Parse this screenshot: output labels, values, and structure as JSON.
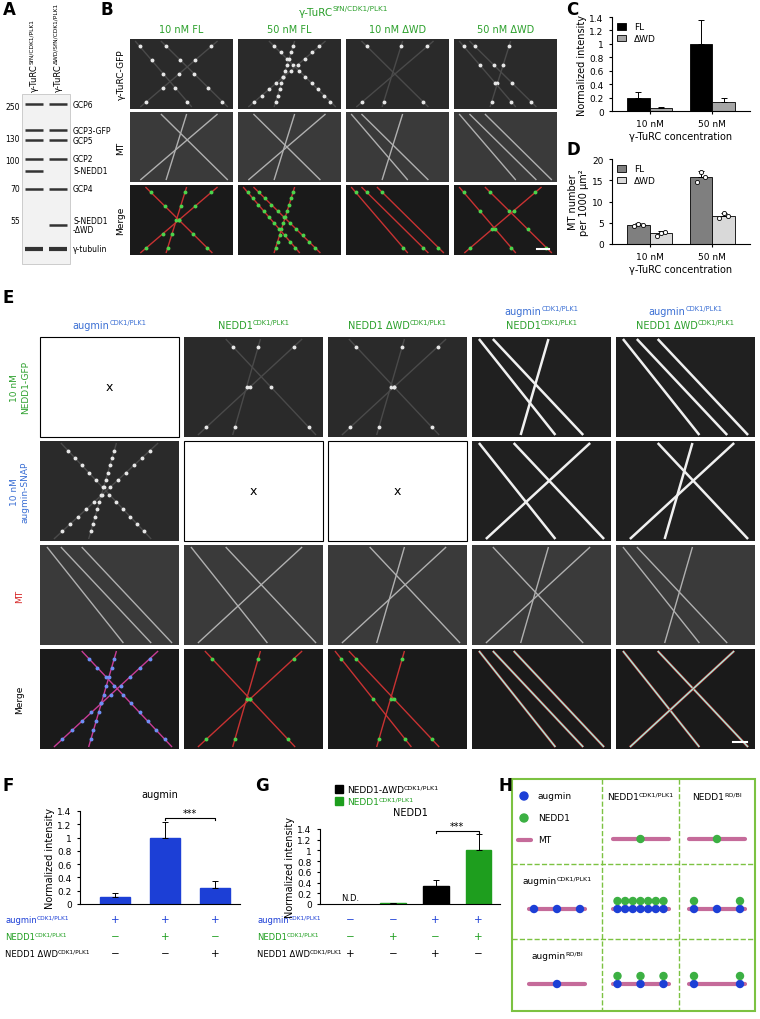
{
  "panel_labels": [
    "A",
    "B",
    "C",
    "D",
    "E",
    "F",
    "G",
    "H"
  ],
  "gel": {
    "lanes": [
      {
        "text": "γ-TuRC",
        "sup": "SfN/CDK1/PLK1"
      },
      {
        "text": "γ-TuRC",
        "sup": "ΔWD/SfN/CDK1/PLK1"
      }
    ],
    "mw_markers": [
      250,
      130,
      100,
      70,
      55
    ],
    "bands": [
      "GCP6",
      "GCP3-GFP",
      "GCP5",
      "GCP2",
      "S-NEDD1",
      "GCP4",
      "S-NEDD1\n-ΔWD",
      "γ-tubulin"
    ]
  },
  "micrographs_B": {
    "title": {
      "text": "γ-TuRC",
      "sup": "SfN/CDK1/PLK1",
      "color": "#2ca02c"
    },
    "columns": [
      "10 nM FL",
      "50 nM FL",
      "10 nM ΔWD",
      "50 nM ΔWD"
    ],
    "rows": [
      "γ-TuRC-GFP",
      "MT",
      "Merge"
    ]
  },
  "chart_data": [
    {
      "type": "bar",
      "ylabel": "Normalized intensity",
      "xlabel": "γ-TuRC concentration",
      "categories": [
        "10 nM",
        "50 nM"
      ],
      "series": [
        {
          "name": "FL",
          "color": "#000000",
          "values": [
            0.2,
            1.0
          ],
          "errors": [
            0.08,
            0.35
          ]
        },
        {
          "name": "ΔWD",
          "color": "#a6a6a6",
          "values": [
            0.04,
            0.13
          ],
          "errors": [
            0.02,
            0.07
          ]
        }
      ],
      "ylim": [
        0,
        1.4
      ],
      "yticks": [
        0,
        0.2,
        0.4,
        0.6,
        0.8,
        1,
        1.2,
        1.4
      ],
      "legend": "upper left",
      "grid": false
    },
    {
      "type": "bar",
      "ylabel": "MT number\nper 1000 μm²",
      "xlabel": "γ-TuRC concentration",
      "categories": [
        "10 nM",
        "50 nM"
      ],
      "series": [
        {
          "name": "FL",
          "color": "#7f7f7f",
          "values": [
            4.5,
            15.8
          ],
          "errors": [
            0.5,
            1.4
          ],
          "points": [
            [
              4.3,
              4.8,
              4.5
            ],
            [
              14.6,
              17.0,
              15.8
            ]
          ]
        },
        {
          "name": "ΔWD",
          "color": "#d9d9d9",
          "values": [
            2.5,
            6.7
          ],
          "errors": [
            0.6,
            0.6
          ],
          "points": [
            [
              2.0,
              2.6,
              2.9
            ],
            [
              6.2,
              7.3,
              6.6
            ]
          ]
        }
      ],
      "ylim": [
        0,
        20
      ],
      "yticks": [
        0,
        5,
        10,
        15,
        20
      ],
      "legend": "upper left",
      "grid": false
    },
    {
      "type": "bar",
      "title": "augmin",
      "ylabel": "Normalized intensity",
      "categories": [
        null,
        null,
        null
      ],
      "values": [
        0.1,
        1.0,
        0.24
      ],
      "errors": [
        0.07,
        0.24,
        0.1
      ],
      "color": "#1c3fd6",
      "ylim": [
        0,
        1.4
      ],
      "yticks": [
        0,
        0.2,
        0.4,
        0.6,
        0.8,
        1,
        1.2,
        1.4
      ],
      "significance": [
        {
          "between": [
            1,
            2
          ],
          "label": "***"
        }
      ],
      "conditions": [
        {
          "text": "augmin",
          "sup": "CDK1/PLK1",
          "color": "#1c3fd6",
          "marks": [
            "+",
            "+",
            "+"
          ]
        },
        {
          "text": "NEDD1",
          "sup": "CDK1/PLK1",
          "color": "#1e9e1e",
          "marks": [
            "−",
            "+",
            "−"
          ]
        },
        {
          "text": "NEDD1 ΔWD",
          "sup": "CDK1/PLK1",
          "color": "#000000",
          "marks": [
            "−",
            "−",
            "+"
          ]
        }
      ],
      "tick_labels": "y",
      "grid": false
    },
    {
      "type": "bar",
      "title": "NEDD1",
      "ylabel": "Normalized intensity",
      "categories": [
        null,
        null,
        null,
        null
      ],
      "values": [
        null,
        0.01,
        0.33,
        1.0
      ],
      "errors": [
        null,
        0.005,
        0.12,
        0.3
      ],
      "value_labels": [
        "N.D.",
        null,
        null,
        null
      ],
      "colors": [
        "#000000",
        "#1e9e1e",
        "#000000",
        "#1e9e1e"
      ],
      "ylim": [
        0,
        1.4
      ],
      "yticks": [
        0,
        0.2,
        0.4,
        0.6,
        0.8,
        1,
        1.2,
        1.4
      ],
      "significance": [
        {
          "between": [
            2,
            3
          ],
          "label": "***"
        }
      ],
      "key": [
        {
          "text": "NEDD1-ΔWD",
          "sup": "CDK1/PLK1",
          "color": "#000000"
        },
        {
          "text": "NEDD1",
          "sup": "CDK1/PLK1",
          "color": "#1e9e1e"
        }
      ],
      "conditions": [
        {
          "text": "augmin",
          "sup": "CDK1/PLK1",
          "color": "#1c3fd6",
          "marks": [
            "−",
            "−",
            "+",
            "+"
          ]
        },
        {
          "text": "NEDD1",
          "sup": "CDK1/PLK1",
          "color": "#1e9e1e",
          "marks": [
            "−",
            "+",
            "−",
            "+"
          ]
        },
        {
          "text": "NEDD1 ΔWD",
          "sup": "CDK1/PLK1",
          "color": "#000000",
          "marks": [
            "+",
            "−",
            "+",
            "−"
          ]
        }
      ],
      "tick_labels": "y",
      "grid": false
    }
  ],
  "micrographs_E": {
    "columns": [
      [
        {
          "text": "augmin",
          "sup": "CDK1/PLK1",
          "color": "#3b6fd4"
        }
      ],
      [
        {
          "text": "NEDD1",
          "sup": "CDK1/PLK1",
          "color": "#2ca02c"
        }
      ],
      [
        {
          "text": "NEDD1 ΔWD",
          "sup": "CDK1/PLK1",
          "color": "#2ca02c"
        }
      ],
      [
        {
          "text": "augmin",
          "sup": "CDK1/PLK1",
          "color": "#3b6fd4"
        },
        {
          "text": "NEDD1",
          "sup": "CDK1/PLK1",
          "color": "#2ca02c"
        }
      ],
      [
        {
          "text": "augmin",
          "sup": "CDK1/PLK1",
          "color": "#3b6fd4"
        },
        {
          "text": "NEDD1 ΔWD",
          "sup": "CDK1/PLK1",
          "color": "#2ca02c"
        }
      ]
    ],
    "rows": [
      {
        "text": "10 nM\nNEDD1-GFP",
        "color": "#2ca02c"
      },
      {
        "text": "10 nM\naugmin-SNAP",
        "color": "#3b6fd4"
      },
      {
        "text": "MT",
        "color": "#d62728"
      },
      {
        "text": "Merge",
        "color": "#000000"
      }
    ],
    "empty_cells": [
      [
        0,
        0
      ],
      [
        1,
        1
      ],
      [
        1,
        2
      ]
    ],
    "empty_mark": "x"
  },
  "diagram_H": {
    "key": [
      {
        "text": "augmin",
        "color": "#1c3fd6"
      },
      {
        "text": "NEDD1",
        "color": "#3cb043"
      },
      {
        "text": "MT",
        "color": "#c56b9a"
      }
    ],
    "columns": [
      {
        "text": "NEDD1",
        "sup": "CDK1/PLK1"
      },
      {
        "text": "NEDD1",
        "sup": "RO/BI"
      }
    ],
    "rows": [
      {
        "text": "augmin",
        "sup": "CDK1/PLK1"
      },
      {
        "text": "augmin",
        "sup": "RO/BI"
      }
    ],
    "nedd1_only": [
      1,
      1
    ],
    "augmin_only": [
      3,
      1
    ],
    "combined": [
      [
        {
          "augmin": 7,
          "nedd1": 7
        },
        {
          "augmin": 3,
          "nedd1": 2
        }
      ],
      [
        {
          "augmin": 3,
          "nedd1": 3
        },
        {
          "augmin": 2,
          "nedd1": 2
        }
      ]
    ]
  }
}
